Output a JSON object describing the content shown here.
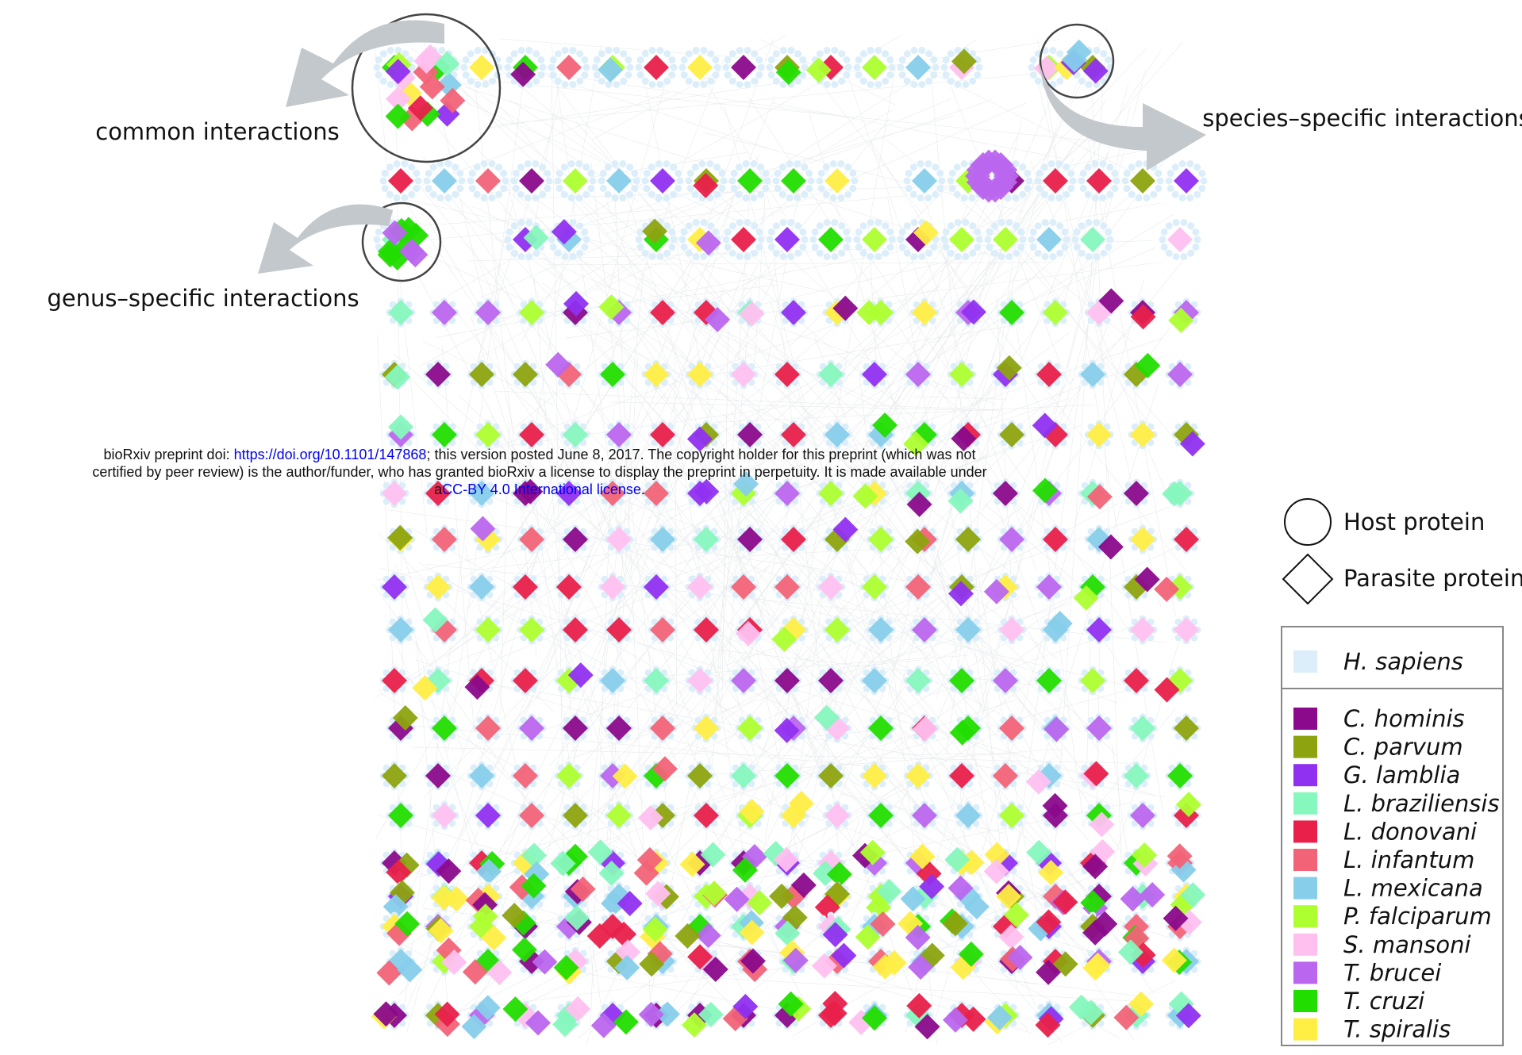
{
  "annotations": {
    "common": "common interactions",
    "species": "species–specific interactions",
    "genus": "genus–specific interactions"
  },
  "notice": {
    "prefix": "bioRxiv preprint doi: ",
    "doi_link": "https://doi.org/10.1101/147868",
    "line1_rest": "; this version posted June 8, 2017. The copyright holder for this preprint (which was not",
    "line2": "certified by peer review) is the author/funder, who has granted bioRxiv a license to display the preprint in perpetuity. It is made available under",
    "line3_prefix": "a",
    "license_link": "CC-BY 4.0 International license",
    "line3_suffix": "."
  },
  "shape_legend": [
    {
      "label": "Host protein"
    },
    {
      "label": "Parasite protein"
    }
  ],
  "host": {
    "name": "H. sapiens",
    "color": "#dceefa"
  },
  "species": [
    {
      "name": "C. hominis",
      "color": "#8b0a8b"
    },
    {
      "name": "C. parvum",
      "color": "#8da30f"
    },
    {
      "name": "G. lamblia",
      "color": "#9030f0"
    },
    {
      "name": "L. braziliensis",
      "color": "#86f7bd"
    },
    {
      "name": "L. donovani",
      "color": "#e8204a"
    },
    {
      "name": "L. infantum",
      "color": "#f26377"
    },
    {
      "name": "L. mexicana",
      "color": "#87ceeb"
    },
    {
      "name": "P. falciparum",
      "color": "#adff2f"
    },
    {
      "name": "S. mansoni",
      "color": "#ffc0f0"
    },
    {
      "name": "T. brucei",
      "color": "#bb66ee"
    },
    {
      "name": "T. cruzi",
      "color": "#22dd00"
    },
    {
      "name": "T. spiralis",
      "color": "#ffee44"
    }
  ]
}
